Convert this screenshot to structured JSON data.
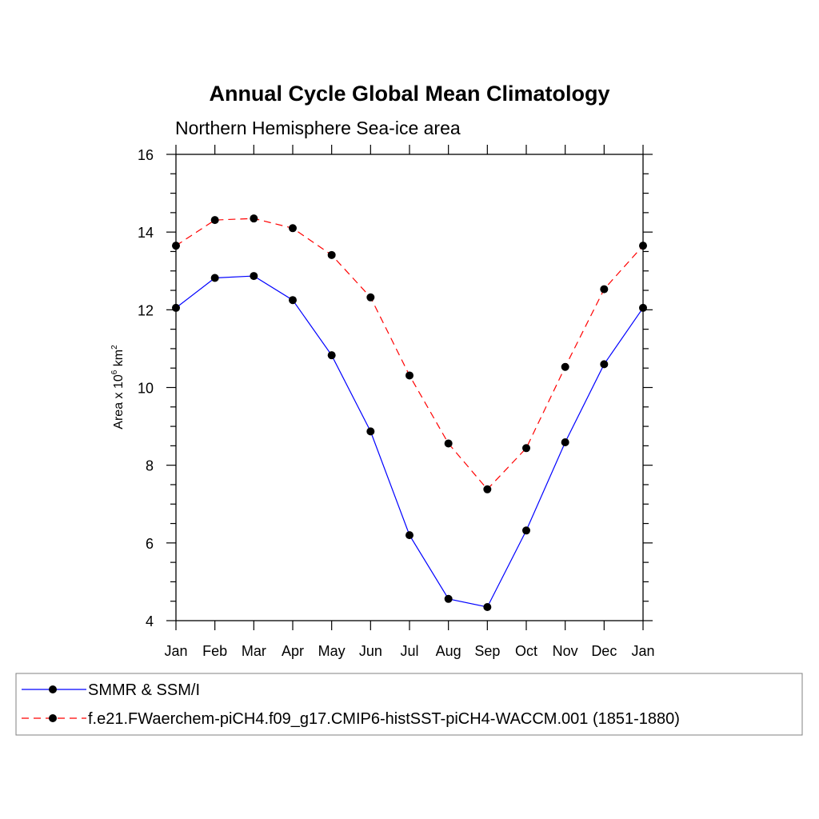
{
  "chart_data": {
    "type": "line",
    "title": "Annual Cycle Global Mean Climatology",
    "subtitle": "Northern Hemisphere Sea-ice area",
    "ylabel": {
      "base": "Area x 10",
      "exp1": "6",
      "unit": " km",
      "exp2": "2"
    },
    "categories": [
      "Jan",
      "Feb",
      "Mar",
      "Apr",
      "May",
      "Jun",
      "Jul",
      "Aug",
      "Sep",
      "Oct",
      "Nov",
      "Dec",
      "Jan"
    ],
    "ylim": [
      4,
      16
    ],
    "yticks": [
      4,
      6,
      8,
      10,
      12,
      14,
      16
    ],
    "ytick_labels": [
      "4",
      "6",
      "8",
      "10",
      "12",
      "14",
      "16"
    ],
    "grid": false,
    "legend_placement": "bottom",
    "series": [
      {
        "name": "SMMR & SSM/I",
        "color": "#0000ff",
        "dash": "solid",
        "values": [
          12.05,
          12.82,
          12.87,
          12.25,
          10.83,
          8.87,
          6.2,
          4.56,
          4.35,
          6.32,
          8.59,
          10.6,
          12.05
        ]
      },
      {
        "name": "f.e21.FWaerchem-piCH4.f09_g17.CMIP6-histSST-piCH4-WACCM.001 (1851-1880)",
        "color": "#ff0000",
        "dash": "dashed",
        "values": [
          13.65,
          14.31,
          14.35,
          14.1,
          13.41,
          12.32,
          10.31,
          8.56,
          7.38,
          8.44,
          10.53,
          12.53,
          13.65
        ]
      }
    ],
    "marker_color": "#000000"
  }
}
